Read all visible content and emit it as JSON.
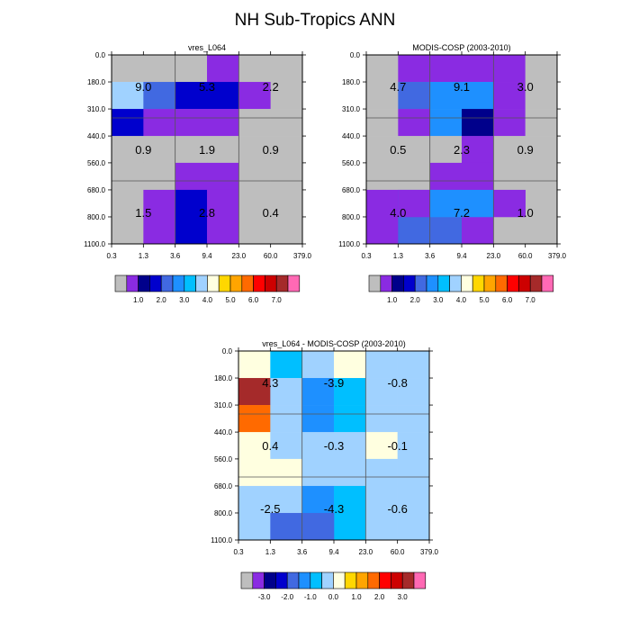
{
  "figure": {
    "title": "NH Sub-Tropics ANN"
  },
  "chart_data": [
    {
      "type": "heatmap",
      "title": "vres_L064",
      "x_ticks": [
        "0.3",
        "1.3",
        "3.6",
        "9.4",
        "23.0",
        "60.0",
        "379.0"
      ],
      "y_ticks": [
        "0.0",
        "180.0",
        "310.0",
        "440.0",
        "560.0",
        "680.0",
        "800.0",
        "1100.0"
      ],
      "cells": [
        [
          "g",
          "g",
          "g",
          "P",
          "g",
          "g"
        ],
        [
          "L",
          "R",
          "N",
          "N",
          "P",
          "g"
        ],
        [
          "N",
          "P",
          "P",
          "P",
          "g",
          "g"
        ],
        [
          "g",
          "g",
          "g",
          "g",
          "g",
          "g"
        ],
        [
          "g",
          "g",
          "P",
          "P",
          "g",
          "g"
        ],
        [
          "g",
          "P",
          "N",
          "P",
          "g",
          "g"
        ]
      ],
      "annotations": [
        {
          "text": "9.0",
          "col": 0,
          "row": 0
        },
        {
          "text": "5.3",
          "col": 1,
          "row": 0
        },
        {
          "text": "2.2",
          "col": 2,
          "row": 0
        },
        {
          "text": "0.9",
          "col": 0,
          "row": 1
        },
        {
          "text": "1.9",
          "col": 1,
          "row": 1
        },
        {
          "text": "0.9",
          "col": 2,
          "row": 1
        },
        {
          "text": "1.5",
          "col": 0,
          "row": 2
        },
        {
          "text": "2.8",
          "col": 1,
          "row": 2
        },
        {
          "text": "0.4",
          "col": 2,
          "row": 2
        }
      ],
      "colorbar": {
        "colors": [
          "#bebebe",
          "#8a2be2",
          "#00008b",
          "#0000cd",
          "#4169e1",
          "#1e90ff",
          "#00bfff",
          "#a0d2ff",
          "#ffffe0",
          "#ffd700",
          "#ffa500",
          "#ff6a00",
          "#ff0000",
          "#cd0000",
          "#a52a2a",
          "#ff69b4"
        ],
        "labels": [
          "1.0",
          "2.0",
          "3.0",
          "4.0",
          "5.0",
          "6.0",
          "7.0"
        ]
      }
    },
    {
      "type": "heatmap",
      "title": "MODIS-COSP (2003-2010)",
      "x_ticks": [
        "0.3",
        "1.3",
        "3.6",
        "9.4",
        "23.0",
        "60.0",
        "379.0"
      ],
      "y_ticks": [
        "0.0",
        "180.0",
        "310.0",
        "440.0",
        "560.0",
        "680.0",
        "800.0",
        "1100.0"
      ],
      "cells": [
        [
          "g",
          "P",
          "P",
          "P",
          "P",
          "g"
        ],
        [
          "g",
          "R",
          "D",
          "B",
          "P",
          "g"
        ],
        [
          "g",
          "P",
          "B",
          "K",
          "P",
          "g"
        ],
        [
          "g",
          "g",
          "g",
          "P",
          "g",
          "g"
        ],
        [
          "g",
          "g",
          "P",
          "P",
          "g",
          "g"
        ],
        [
          "P",
          "R",
          "R",
          "P",
          "g",
          "g"
        ]
      ],
      "overlay_cells": [
        {
          "row": 5,
          "col": 1,
          "color": "P",
          "half": "top"
        },
        {
          "row": 5,
          "col": 2,
          "color": "D",
          "half": "top"
        },
        {
          "row": 5,
          "col": 3,
          "color": "B",
          "half": "top"
        },
        {
          "row": 5,
          "col": 4,
          "color": "P",
          "half": "top"
        }
      ],
      "annotations": [
        {
          "text": "4.7",
          "col": 0,
          "row": 0
        },
        {
          "text": "9.1",
          "col": 1,
          "row": 0
        },
        {
          "text": "3.0",
          "col": 2,
          "row": 0
        },
        {
          "text": "0.5",
          "col": 0,
          "row": 1
        },
        {
          "text": "2.3",
          "col": 1,
          "row": 1
        },
        {
          "text": "0.9",
          "col": 2,
          "row": 1
        },
        {
          "text": "4.0",
          "col": 0,
          "row": 2
        },
        {
          "text": "7.2",
          "col": 1,
          "row": 2
        },
        {
          "text": "1.0",
          "col": 2,
          "row": 2
        }
      ],
      "colorbar": {
        "colors": [
          "#bebebe",
          "#8a2be2",
          "#00008b",
          "#0000cd",
          "#4169e1",
          "#1e90ff",
          "#00bfff",
          "#a0d2ff",
          "#ffffe0",
          "#ffd700",
          "#ffa500",
          "#ff6a00",
          "#ff0000",
          "#cd0000",
          "#a52a2a",
          "#ff69b4"
        ],
        "labels": [
          "1.0",
          "2.0",
          "3.0",
          "4.0",
          "5.0",
          "6.0",
          "7.0"
        ]
      }
    },
    {
      "type": "heatmap",
      "title": "vres_L064 - MODIS-COSP (2003-2010)",
      "x_ticks": [
        "0.3",
        "1.3",
        "3.6",
        "9.4",
        "23.0",
        "60.0",
        "379.0"
      ],
      "y_ticks": [
        "0.0",
        "180.0",
        "310.0",
        "440.0",
        "560.0",
        "680.0",
        "800.0",
        "1100.0"
      ],
      "cells": [
        [
          "Y",
          "S",
          "L",
          "Y",
          "L",
          "L"
        ],
        [
          "M",
          "L",
          "D",
          "S",
          "L",
          "L"
        ],
        [
          "O",
          "L",
          "D",
          "S",
          "L",
          "L"
        ],
        [
          "Y",
          "L",
          "L",
          "L",
          "Y",
          "L"
        ],
        [
          "Y",
          "Y",
          "L",
          "L",
          "L",
          "L"
        ],
        [
          "L",
          "L",
          "D",
          "S",
          "L",
          "L"
        ]
      ],
      "overlay_cells": [
        {
          "row": 5,
          "col": 1,
          "color": "R",
          "half": "bottom"
        },
        {
          "row": 5,
          "col": 2,
          "color": "R",
          "half": "bottom"
        }
      ],
      "annotations": [
        {
          "text": "4.3",
          "col": 0,
          "row": 0
        },
        {
          "text": "-3.9",
          "col": 1,
          "row": 0
        },
        {
          "text": "-0.8",
          "col": 2,
          "row": 0
        },
        {
          "text": "0.4",
          "col": 0,
          "row": 1
        },
        {
          "text": "-0.3",
          "col": 1,
          "row": 1
        },
        {
          "text": "-0.1",
          "col": 2,
          "row": 1
        },
        {
          "text": "-2.5",
          "col": 0,
          "row": 2
        },
        {
          "text": "-4.3",
          "col": 1,
          "row": 2
        },
        {
          "text": "-0.6",
          "col": 2,
          "row": 2
        }
      ],
      "colorbar": {
        "colors": [
          "#bebebe",
          "#8a2be2",
          "#00008b",
          "#0000cd",
          "#4169e1",
          "#1e90ff",
          "#00bfff",
          "#a0d2ff",
          "#ffffe0",
          "#ffd700",
          "#ffa500",
          "#ff6a00",
          "#ff0000",
          "#cd0000",
          "#a52a2a",
          "#ff69b4"
        ],
        "labels": [
          "-3.0",
          "-2.0",
          "-1.0",
          "0.0",
          "1.0",
          "2.0",
          "3.0"
        ]
      }
    }
  ],
  "palette": {
    "g": "#bebebe",
    "P": "#8a2be2",
    "K": "#00008b",
    "N": "#0000cd",
    "R": "#4169e1",
    "D": "#1e90ff",
    "S": "#00bfff",
    "B": "#1e90ff",
    "L": "#a0d2ff",
    "Y": "#ffffe0",
    "O": "#ff6a00",
    "M": "#a52a2a"
  }
}
